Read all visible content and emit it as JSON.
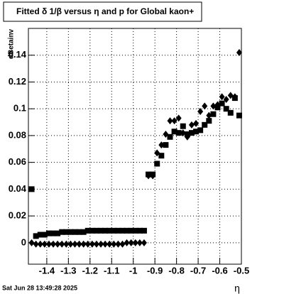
{
  "chart_data": {
    "type": "scatter",
    "title": "Fitted δ 1/β versus η and p for Global kaon+",
    "x_label": "η",
    "y_label": "dBetainv",
    "footer": "Sat Jun 28 13:49:28 2025",
    "xlim": [
      -1.485,
      -0.5
    ],
    "ylim": [
      -0.016,
      0.16
    ],
    "xticks": [
      -1.4,
      -1.3,
      -1.2,
      -1.1,
      -1,
      -0.9,
      -0.8,
      -0.7,
      -0.6,
      -0.5
    ],
    "yticks": [
      0,
      0.02,
      0.04,
      0.06,
      0.08,
      0.1,
      0.12,
      0.14
    ],
    "grid": true,
    "series": [
      {
        "marker": "square",
        "color": "#000000",
        "x": [
          -1.47,
          -1.45,
          -1.43,
          -1.41,
          -1.39,
          -1.37,
          -1.35,
          -1.33,
          -1.31,
          -1.29,
          -1.27,
          -1.25,
          -1.23,
          -1.21,
          -1.19,
          -1.17,
          -1.15,
          -1.13,
          -1.11,
          -1.09,
          -1.07,
          -1.05,
          -1.03,
          -1.01,
          -0.99,
          -0.97,
          -0.95,
          -0.93,
          -0.91,
          -0.89,
          -0.87,
          -0.85,
          -0.83,
          -0.81,
          -0.79,
          -0.77,
          -0.75,
          -0.73,
          -0.71,
          -0.69,
          -0.67,
          -0.65,
          -0.63,
          -0.61,
          -0.59,
          -0.57,
          -0.55,
          -0.53,
          -0.51
        ],
        "values": [
          0.04,
          0.005,
          0.006,
          0.006,
          0.007,
          0.007,
          0.007,
          0.008,
          0.008,
          0.008,
          0.008,
          0.008,
          0.008,
          0.009,
          0.009,
          0.009,
          0.009,
          0.009,
          0.009,
          0.009,
          0.009,
          0.009,
          0.009,
          0.009,
          0.009,
          0.009,
          0.009,
          0.051,
          0.051,
          0.059,
          0.065,
          0.073,
          0.079,
          0.083,
          0.082,
          0.087,
          0.081,
          0.082,
          0.083,
          0.084,
          0.088,
          0.091,
          0.096,
          0.101,
          0.104,
          0.1,
          0.097,
          0.108,
          0.095
        ]
      },
      {
        "marker": "diamond",
        "color": "#000000",
        "x": [
          -1.47,
          -1.45,
          -1.43,
          -1.41,
          -1.39,
          -1.37,
          -1.35,
          -1.33,
          -1.31,
          -1.29,
          -1.27,
          -1.25,
          -1.23,
          -1.21,
          -1.19,
          -1.17,
          -1.15,
          -1.13,
          -1.11,
          -1.09,
          -1.07,
          -1.05,
          -1.03,
          -1.01,
          -0.99,
          -0.97,
          -0.95,
          -0.93,
          -0.91,
          -0.89,
          -0.87,
          -0.85,
          -0.83,
          -0.81,
          -0.79,
          -0.77,
          -0.75,
          -0.73,
          -0.71,
          -0.69,
          -0.67,
          -0.65,
          -0.63,
          -0.61,
          -0.59,
          -0.57,
          -0.55,
          -0.53,
          -0.51
        ],
        "values": [
          0.0,
          -0.001,
          -0.001,
          -0.001,
          -0.001,
          -0.001,
          -0.001,
          -0.001,
          -0.001,
          -0.001,
          -0.001,
          -0.001,
          -0.001,
          -0.001,
          -0.001,
          -0.001,
          -0.001,
          -0.001,
          -0.001,
          -0.001,
          -0.001,
          -0.001,
          0.0,
          0.0,
          0.0,
          0.0,
          0.0,
          0.05,
          0.05,
          0.067,
          0.073,
          0.081,
          0.091,
          0.091,
          0.093,
          0.082,
          0.079,
          0.088,
          0.089,
          0.098,
          0.102,
          0.095,
          0.102,
          0.103,
          0.109,
          0.107,
          0.11,
          0.109,
          0.142
        ]
      }
    ]
  }
}
